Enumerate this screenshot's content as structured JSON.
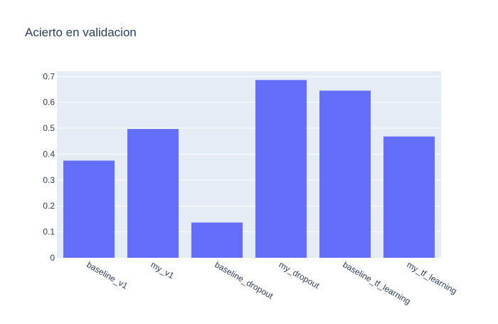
{
  "chart_data": {
    "type": "bar",
    "title": "Acierto en validacion",
    "xlabel": "",
    "ylabel": "",
    "categories": [
      "baseline_v1",
      "my_v1",
      "baseline_dropout",
      "my_dropout",
      "baseline_tf_learning",
      "my_tf_learning"
    ],
    "values": [
      0.375,
      0.497,
      0.136,
      0.686,
      0.645,
      0.468
    ],
    "ylim": [
      0,
      0.72
    ],
    "yticks": [
      0,
      0.1,
      0.2,
      0.3,
      0.4,
      0.5,
      0.6,
      0.7
    ],
    "ytick_labels": [
      "0",
      "0.1",
      "0.2",
      "0.3",
      "0.4",
      "0.5",
      "0.6",
      "0.7"
    ],
    "grid": true,
    "bar_color": "#636efa",
    "plot_background": "#e5ecf6",
    "text_color": "#2a3f5f"
  }
}
